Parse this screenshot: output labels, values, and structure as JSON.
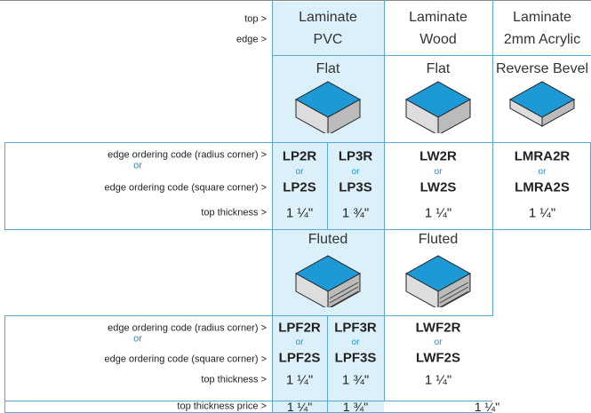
{
  "header": {
    "row_labels": [
      "top >",
      "edge >"
    ],
    "columns": [
      {
        "top": "Laminate",
        "edge": "PVC"
      },
      {
        "top": "Laminate",
        "edge": "Wood"
      },
      {
        "top": "Laminate",
        "edge": "2mm Acrylic"
      }
    ]
  },
  "sections": [
    {
      "profiles": [
        "Flat",
        "Flat",
        "Reverse Bevel"
      ],
      "row_labels": [
        "edge ordering code (radius corner) >",
        "or",
        "edge ordering code (square corner) >",
        "top thickness >"
      ],
      "codes": [
        [
          "LP2R",
          "or",
          "LP2S",
          "1 ¼\""
        ],
        [
          "LP3R",
          "or",
          "LP3S",
          "1 ¾\""
        ],
        [
          "LW2R",
          "or",
          "LW2S",
          "1 ¼\""
        ],
        [
          "LMRA2R",
          "or",
          "LMRA2S",
          "1 ¼\""
        ]
      ]
    },
    {
      "profiles": [
        "Fluted",
        "Fluted"
      ],
      "row_labels": [
        "edge ordering code (radius corner) >",
        "or",
        "edge ordering code (square corner) >",
        "top thickness >"
      ],
      "codes": [
        [
          "LPF2R",
          "or",
          "LPF2S",
          "1 ¼\""
        ],
        [
          "LPF3R",
          "or",
          "LPF3S",
          "1 ¾\""
        ],
        [
          "LWF2R",
          "or",
          "LWF2S",
          "1 ¼\""
        ]
      ]
    }
  ],
  "price_row": {
    "label": "top thickness price >",
    "values": [
      "1 ¼\"",
      "1 ¾\"",
      "1 ¼\""
    ]
  }
}
